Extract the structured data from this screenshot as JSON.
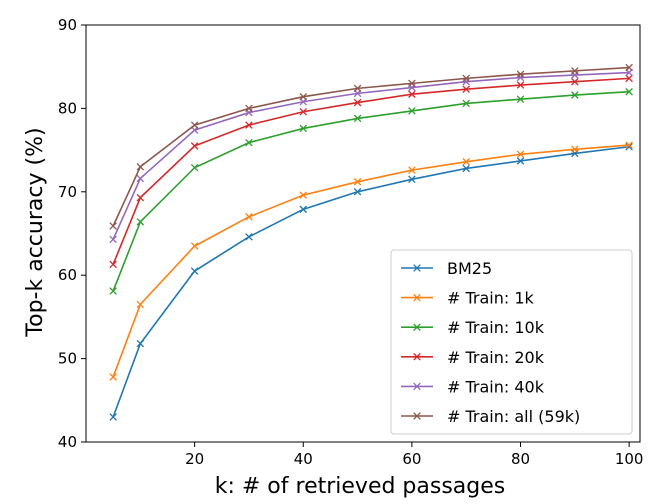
{
  "chart_data": {
    "type": "line",
    "title": "",
    "xlabel": "k: # of retrieved passages",
    "ylabel": "Top-k accuracy (%)",
    "xlim": [
      0,
      102
    ],
    "ylim": [
      40,
      90
    ],
    "xticks": [
      20,
      40,
      60,
      80,
      100
    ],
    "yticks": [
      40,
      50,
      60,
      70,
      80,
      90
    ],
    "grid": false,
    "legend_position": "lower-right",
    "x": [
      5,
      10,
      20,
      30,
      40,
      50,
      60,
      70,
      80,
      90,
      100
    ],
    "series": [
      {
        "name": "BM25",
        "color": "#1f77b4",
        "values": [
          43.0,
          51.8,
          60.5,
          64.6,
          67.9,
          70.0,
          71.5,
          72.8,
          73.7,
          74.6,
          75.4
        ]
      },
      {
        "name": "# Train: 1k",
        "color": "#ff7f0e",
        "values": [
          47.8,
          56.5,
          63.5,
          67.0,
          69.6,
          71.2,
          72.6,
          73.6,
          74.5,
          75.1,
          75.6
        ]
      },
      {
        "name": "# Train: 10k",
        "color": "#2ca02c",
        "values": [
          58.1,
          66.4,
          72.9,
          75.9,
          77.6,
          78.8,
          79.7,
          80.6,
          81.1,
          81.6,
          82.0
        ]
      },
      {
        "name": "# Train: 20k",
        "color": "#d62728",
        "values": [
          61.3,
          69.3,
          75.5,
          78.0,
          79.6,
          80.7,
          81.7,
          82.3,
          82.8,
          83.2,
          83.6
        ]
      },
      {
        "name": "# Train: 40k",
        "color": "#9467bd",
        "values": [
          64.3,
          71.6,
          77.4,
          79.5,
          80.8,
          81.8,
          82.5,
          83.2,
          83.7,
          84.0,
          84.3
        ]
      },
      {
        "name": "# Train: all (59k)",
        "color": "#8c564b",
        "values": [
          65.9,
          73.0,
          78.0,
          80.0,
          81.4,
          82.4,
          83.0,
          83.6,
          84.1,
          84.5,
          84.9
        ]
      }
    ]
  }
}
